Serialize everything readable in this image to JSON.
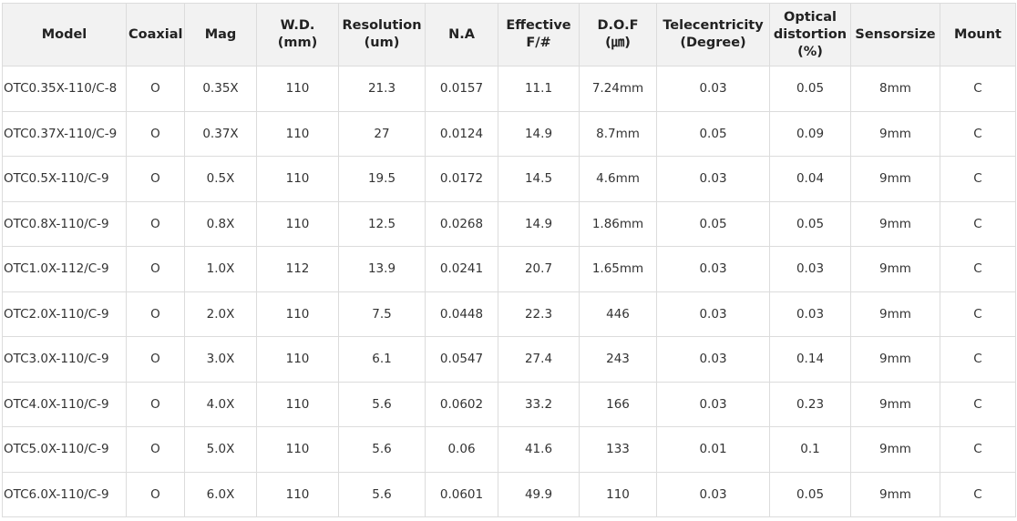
{
  "table": {
    "headers": [
      "Model",
      "Coaxial",
      "Mag",
      "W.D.\n(mm)",
      "Resolution\n(um)",
      "N.A",
      "Effective\nF/#",
      "D.O.F\n(㎛)",
      "Telecentricity\n(Degree)",
      "Optical\ndistortion\n(%)",
      "Sensorsize",
      "Mount"
    ],
    "rows": [
      [
        "OTC0.35X-110/C-8",
        "O",
        "0.35X",
        "110",
        "21.3",
        "0.0157",
        "11.1",
        "7.24mm",
        "0.03",
        "0.05",
        "8mm",
        "C"
      ],
      [
        "OTC0.37X-110/C-9",
        "O",
        "0.37X",
        "110",
        "27",
        "0.0124",
        "14.9",
        "8.7mm",
        "0.05",
        "0.09",
        "9mm",
        "C"
      ],
      [
        "OTC0.5X-110/C-9",
        "O",
        "0.5X",
        "110",
        "19.5",
        "0.0172",
        "14.5",
        "4.6mm",
        "0.03",
        "0.04",
        "9mm",
        "C"
      ],
      [
        "OTC0.8X-110/C-9",
        "O",
        "0.8X",
        "110",
        "12.5",
        "0.0268",
        "14.9",
        "1.86mm",
        "0.05",
        "0.05",
        "9mm",
        "C"
      ],
      [
        "OTC1.0X-112/C-9",
        "O",
        "1.0X",
        "112",
        "13.9",
        "0.0241",
        "20.7",
        "1.65mm",
        "0.03",
        "0.03",
        "9mm",
        "C"
      ],
      [
        "OTC2.0X-110/C-9",
        "O",
        "2.0X",
        "110",
        "7.5",
        "0.0448",
        "22.3",
        "446",
        "0.03",
        "0.03",
        "9mm",
        "C"
      ],
      [
        "OTC3.0X-110/C-9",
        "O",
        "3.0X",
        "110",
        "6.1",
        "0.0547",
        "27.4",
        "243",
        "0.03",
        "0.14",
        "9mm",
        "C"
      ],
      [
        "OTC4.0X-110/C-9",
        "O",
        "4.0X",
        "110",
        "5.6",
        "0.0602",
        "33.2",
        "166",
        "0.03",
        "0.23",
        "9mm",
        "C"
      ],
      [
        "OTC5.0X-110/C-9",
        "O",
        "5.0X",
        "110",
        "5.6",
        "0.06",
        "41.6",
        "133",
        "0.01",
        "0.1",
        "9mm",
        "C"
      ],
      [
        "OTC6.0X-110/C-9",
        "O",
        "6.0X",
        "110",
        "5.6",
        "0.0601",
        "49.9",
        "110",
        "0.03",
        "0.05",
        "9mm",
        "C"
      ]
    ]
  }
}
